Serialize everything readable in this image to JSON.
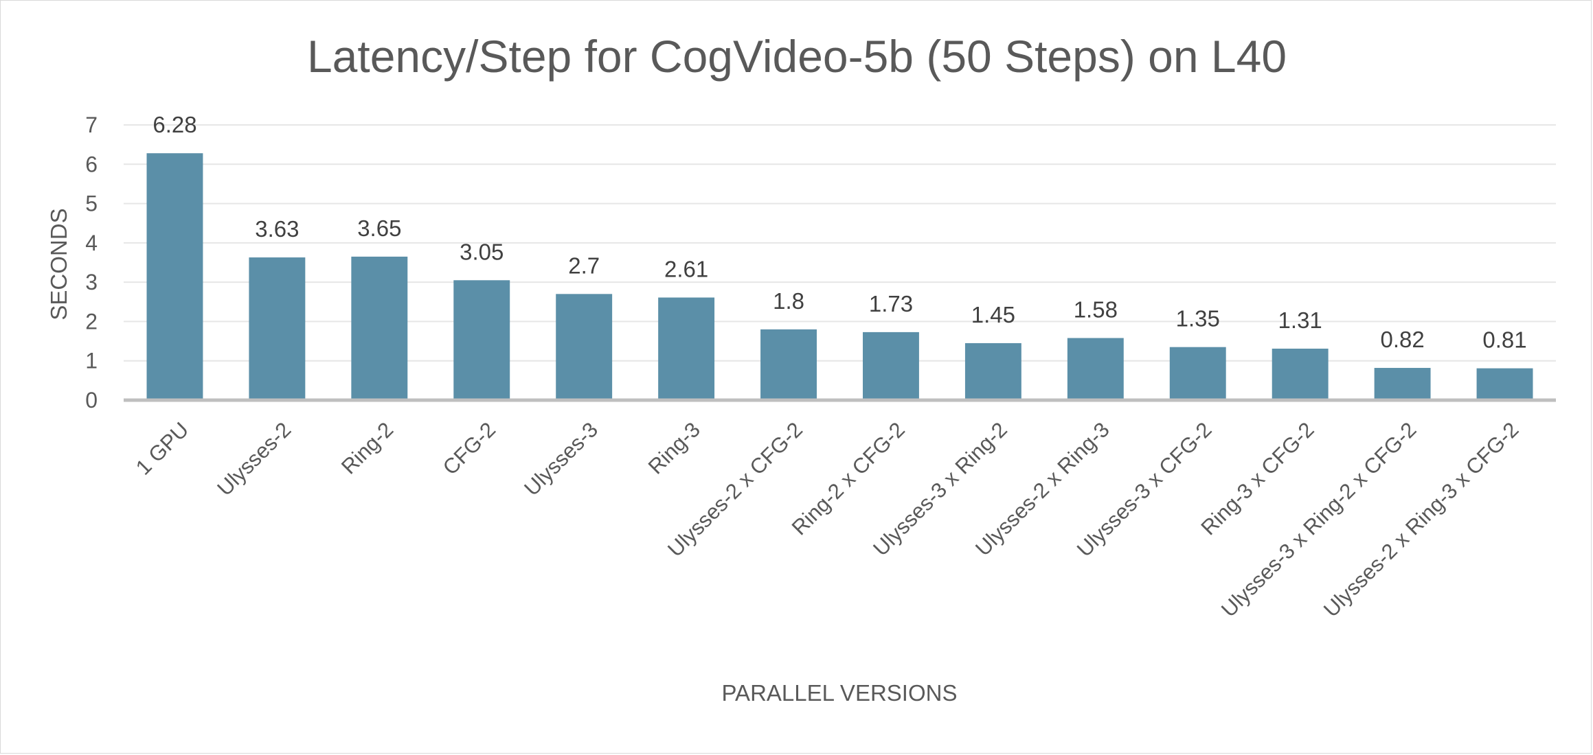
{
  "chart_data": {
    "type": "bar",
    "title": "Latency/Step for CogVideo-5b (50 Steps) on L40",
    "xlabel": "PARALLEL VERSIONS",
    "ylabel": "SECONDS",
    "ylim": [
      0,
      7
    ],
    "yticks": [
      0,
      1,
      2,
      3,
      4,
      5,
      6,
      7
    ],
    "grid": true,
    "legend": "none",
    "bar_color": "#5b8fa8",
    "categories": [
      "1 GPU",
      "Ulysses-2",
      "Ring-2",
      "CFG-2",
      "Ulysses-3",
      "Ring-3",
      "Ulysses-2 x CFG-2",
      "Ring-2 x CFG-2",
      "Ulysses-3 x Ring-2",
      "Ulysses-2 x Ring-3",
      "Ulysses-3 x CFG-2",
      "Ring-3 x CFG-2",
      "Ulysses-3 x Ring-2 x CFG-2",
      "Ulysses-2 x Ring-3 x CFG-2"
    ],
    "values": [
      6.28,
      3.63,
      3.65,
      3.05,
      2.7,
      2.61,
      1.8,
      1.73,
      1.45,
      1.58,
      1.35,
      1.31,
      0.82,
      0.81
    ],
    "data_labels": [
      "6.28",
      "3.63",
      "3.65",
      "3.05",
      "2.7",
      "2.61",
      "1.8",
      "1.73",
      "1.45",
      "1.58",
      "1.35",
      "1.31",
      "0.82",
      "0.81"
    ]
  }
}
